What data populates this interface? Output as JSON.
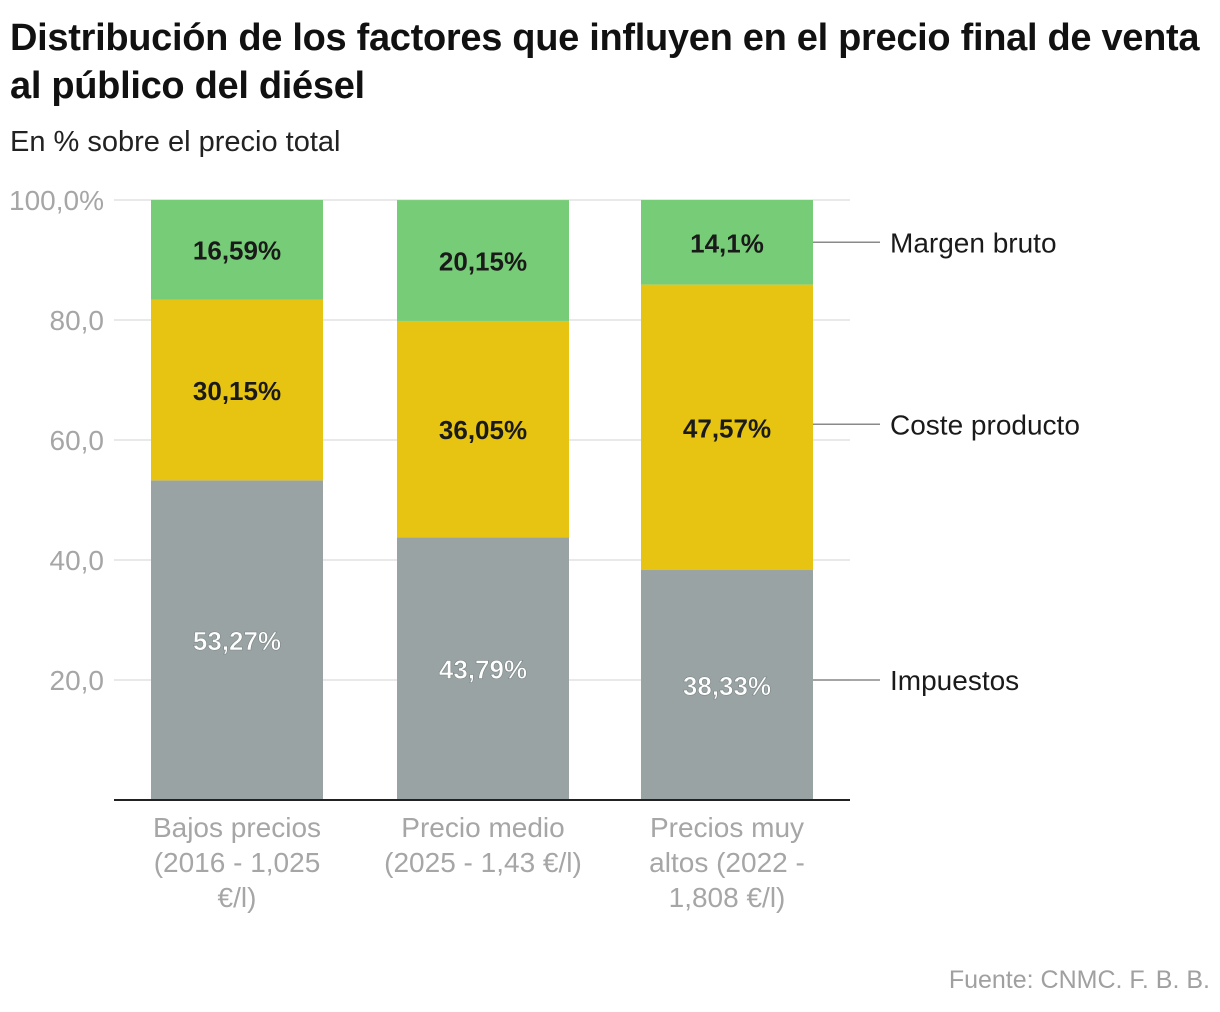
{
  "title": "Distribución de los factores que influyen en el precio final de venta al público del diésel",
  "subtitle": "En % sobre el precio total",
  "source": "Fuente: CNMC. F. B. B.",
  "chart_data": {
    "type": "bar",
    "stacked": true,
    "categories": [
      [
        "Bajos precios",
        "(2016 - 1,025",
        "€/l)"
      ],
      [
        "Precio medio",
        "(2025 - 1,43 €/l)"
      ],
      [
        "Precios muy",
        "altos (2022 -",
        "1,808 €/l)"
      ]
    ],
    "series": [
      {
        "name": "Impuestos",
        "values": [
          53.27,
          43.79,
          38.33
        ],
        "labels": [
          "53,27%",
          "43,79%",
          "38,33%"
        ],
        "color": "#99a3a3",
        "label_color": "#ffffff"
      },
      {
        "name": "Coste producto",
        "values": [
          30.15,
          36.05,
          47.57
        ],
        "labels": [
          "30,15%",
          "36,05%",
          "47,57%"
        ],
        "color": "#e6c411",
        "label_color": "#1a1a1a"
      },
      {
        "name": "Margen bruto",
        "values": [
          16.59,
          20.15,
          14.1
        ],
        "labels": [
          "16,59%",
          "20,15%",
          "14,1%"
        ],
        "color": "#77cd77",
        "label_color": "#1a1a1a"
      }
    ],
    "yticks": [
      20,
      40,
      60,
      80,
      100
    ],
    "ytick_labels": [
      "20,0",
      "40,0",
      "60,0",
      "80,0",
      "100,0%"
    ],
    "ylim": [
      0,
      100
    ],
    "grid": true,
    "legend": "right, direct labels"
  }
}
